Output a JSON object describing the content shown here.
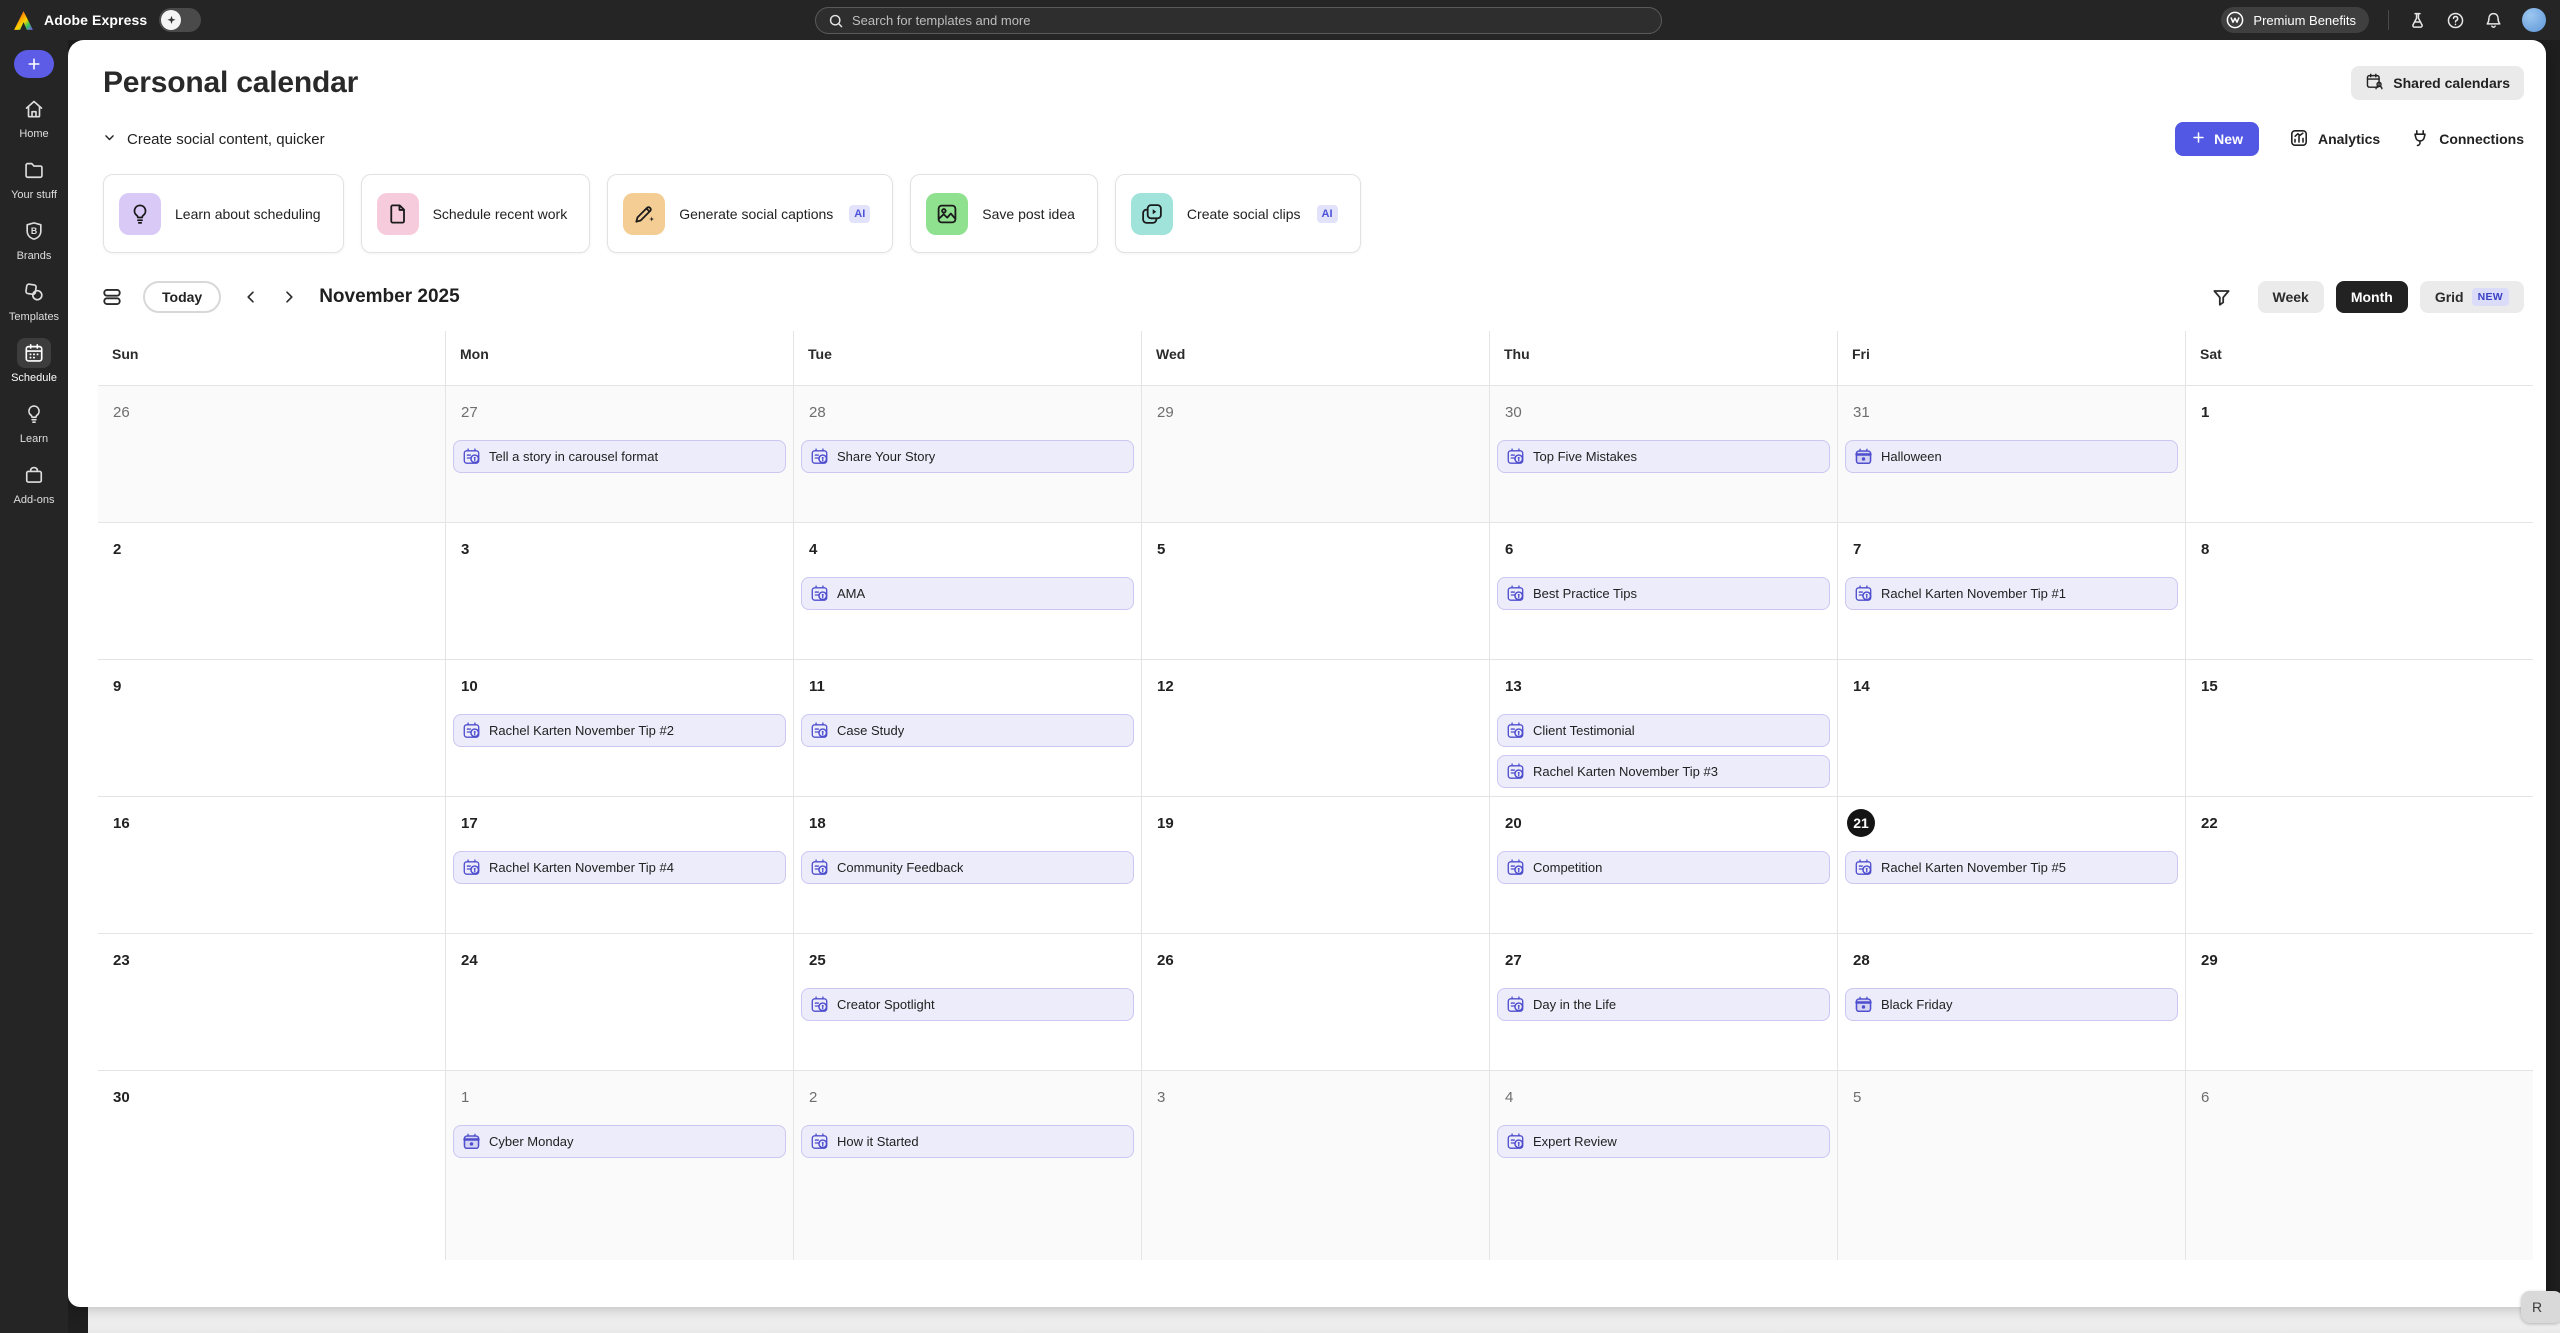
{
  "topbar": {
    "app_name": "Adobe Express",
    "search_placeholder": "Search for templates and more",
    "premium_label": "Premium Benefits"
  },
  "sidebar": {
    "items": [
      {
        "id": "home",
        "label": "Home",
        "icon": "home",
        "active": false
      },
      {
        "id": "your-stuff",
        "label": "Your stuff",
        "icon": "folder",
        "active": false
      },
      {
        "id": "brands",
        "label": "Brands",
        "icon": "shield",
        "active": false
      },
      {
        "id": "templates",
        "label": "Templates",
        "icon": "shapes",
        "active": false
      },
      {
        "id": "schedule",
        "label": "Schedule",
        "icon": "calendar",
        "active": true
      },
      {
        "id": "learn",
        "label": "Learn",
        "icon": "bulb",
        "active": false
      },
      {
        "id": "add-ons",
        "label": "Add-ons",
        "icon": "addons",
        "active": false
      }
    ]
  },
  "page": {
    "title": "Personal calendar",
    "shared_calendars": "Shared calendars",
    "section_label": "Create social content, quicker"
  },
  "actions": {
    "new": "New",
    "analytics": "Analytics",
    "connections": "Connections"
  },
  "quick_actions": [
    {
      "label": "Learn about scheduling",
      "icon": "bulb",
      "tint": "#D9C9F7",
      "ai": false
    },
    {
      "label": "Schedule recent work",
      "icon": "doc",
      "tint": "#F6CBDB",
      "ai": false
    },
    {
      "label": "Generate social captions",
      "icon": "pencil",
      "tint": "#F3CD94",
      "ai": true
    },
    {
      "label": "Save post idea",
      "icon": "image",
      "tint": "#8FE08F",
      "ai": false
    },
    {
      "label": "Create social clips",
      "icon": "clips",
      "tint": "#9FE3DB",
      "ai": true
    }
  ],
  "ai_badge": "AI",
  "toolbar": {
    "today": "Today",
    "month_label": "November 2025",
    "week": "Week",
    "month": "Month",
    "grid": "Grid",
    "new_badge": "NEW"
  },
  "colors": {
    "accent": "#5258E4",
    "event_bg": "#EDECFA",
    "event_border": "#CBC7F0",
    "event_icon": "#4E4ECE",
    "today_circle": "#141414"
  },
  "calendar": {
    "day_headers": [
      "Sun",
      "Mon",
      "Tue",
      "Wed",
      "Thu",
      "Fri",
      "Sat"
    ],
    "weeks": [
      [
        {
          "n": "26",
          "out": true
        },
        {
          "n": "27",
          "out": true,
          "events": [
            {
              "label": "Tell a story in carousel format",
              "icon": "idea"
            }
          ]
        },
        {
          "n": "28",
          "out": true,
          "events": [
            {
              "label": "Share Your Story",
              "icon": "idea"
            }
          ]
        },
        {
          "n": "29",
          "out": true
        },
        {
          "n": "30",
          "out": true,
          "events": [
            {
              "label": "Top Five Mistakes",
              "icon": "idea"
            }
          ]
        },
        {
          "n": "31",
          "out": true,
          "events": [
            {
              "label": "Halloween",
              "icon": "holiday"
            }
          ]
        },
        {
          "n": "1"
        }
      ],
      [
        {
          "n": "2"
        },
        {
          "n": "3"
        },
        {
          "n": "4",
          "events": [
            {
              "label": "AMA",
              "icon": "idea"
            }
          ]
        },
        {
          "n": "5"
        },
        {
          "n": "6",
          "events": [
            {
              "label": "Best Practice Tips",
              "icon": "idea"
            }
          ]
        },
        {
          "n": "7",
          "events": [
            {
              "label": "Rachel Karten November Tip #1",
              "icon": "idea"
            }
          ]
        },
        {
          "n": "8"
        }
      ],
      [
        {
          "n": "9"
        },
        {
          "n": "10",
          "events": [
            {
              "label": "Rachel Karten November Tip #2",
              "icon": "idea"
            }
          ]
        },
        {
          "n": "11",
          "events": [
            {
              "label": "Case Study",
              "icon": "idea"
            }
          ]
        },
        {
          "n": "12"
        },
        {
          "n": "13",
          "events": [
            {
              "label": "Client Testimonial",
              "icon": "idea"
            },
            {
              "label": "Rachel Karten November Tip #3",
              "icon": "idea"
            }
          ]
        },
        {
          "n": "14"
        },
        {
          "n": "15"
        }
      ],
      [
        {
          "n": "16"
        },
        {
          "n": "17",
          "events": [
            {
              "label": "Rachel Karten November Tip #4",
              "icon": "idea"
            }
          ]
        },
        {
          "n": "18",
          "events": [
            {
              "label": "Community Feedback",
              "icon": "idea"
            }
          ]
        },
        {
          "n": "19"
        },
        {
          "n": "20",
          "events": [
            {
              "label": "Competition",
              "icon": "idea"
            }
          ]
        },
        {
          "n": "21",
          "today": true,
          "events": [
            {
              "label": "Rachel Karten November Tip #5",
              "icon": "idea"
            }
          ]
        },
        {
          "n": "22"
        }
      ],
      [
        {
          "n": "23"
        },
        {
          "n": "24"
        },
        {
          "n": "25",
          "events": [
            {
              "label": "Creator Spotlight",
              "icon": "idea"
            }
          ]
        },
        {
          "n": "26"
        },
        {
          "n": "27",
          "events": [
            {
              "label": "Day in the Life",
              "icon": "idea"
            }
          ]
        },
        {
          "n": "28",
          "events": [
            {
              "label": "Black Friday",
              "icon": "holiday"
            }
          ]
        },
        {
          "n": "29"
        }
      ],
      [
        {
          "n": "30"
        },
        {
          "n": "1",
          "out": true,
          "events": [
            {
              "label": "Cyber Monday",
              "icon": "holiday"
            }
          ]
        },
        {
          "n": "2",
          "out": true,
          "events": [
            {
              "label": "How it Started",
              "icon": "idea"
            }
          ]
        },
        {
          "n": "3",
          "out": true
        },
        {
          "n": "4",
          "out": true,
          "events": [
            {
              "label": "Expert Review",
              "icon": "idea"
            }
          ]
        },
        {
          "n": "5",
          "out": true
        },
        {
          "n": "6",
          "out": true
        }
      ]
    ]
  },
  "footer": {
    "tab": "R"
  }
}
